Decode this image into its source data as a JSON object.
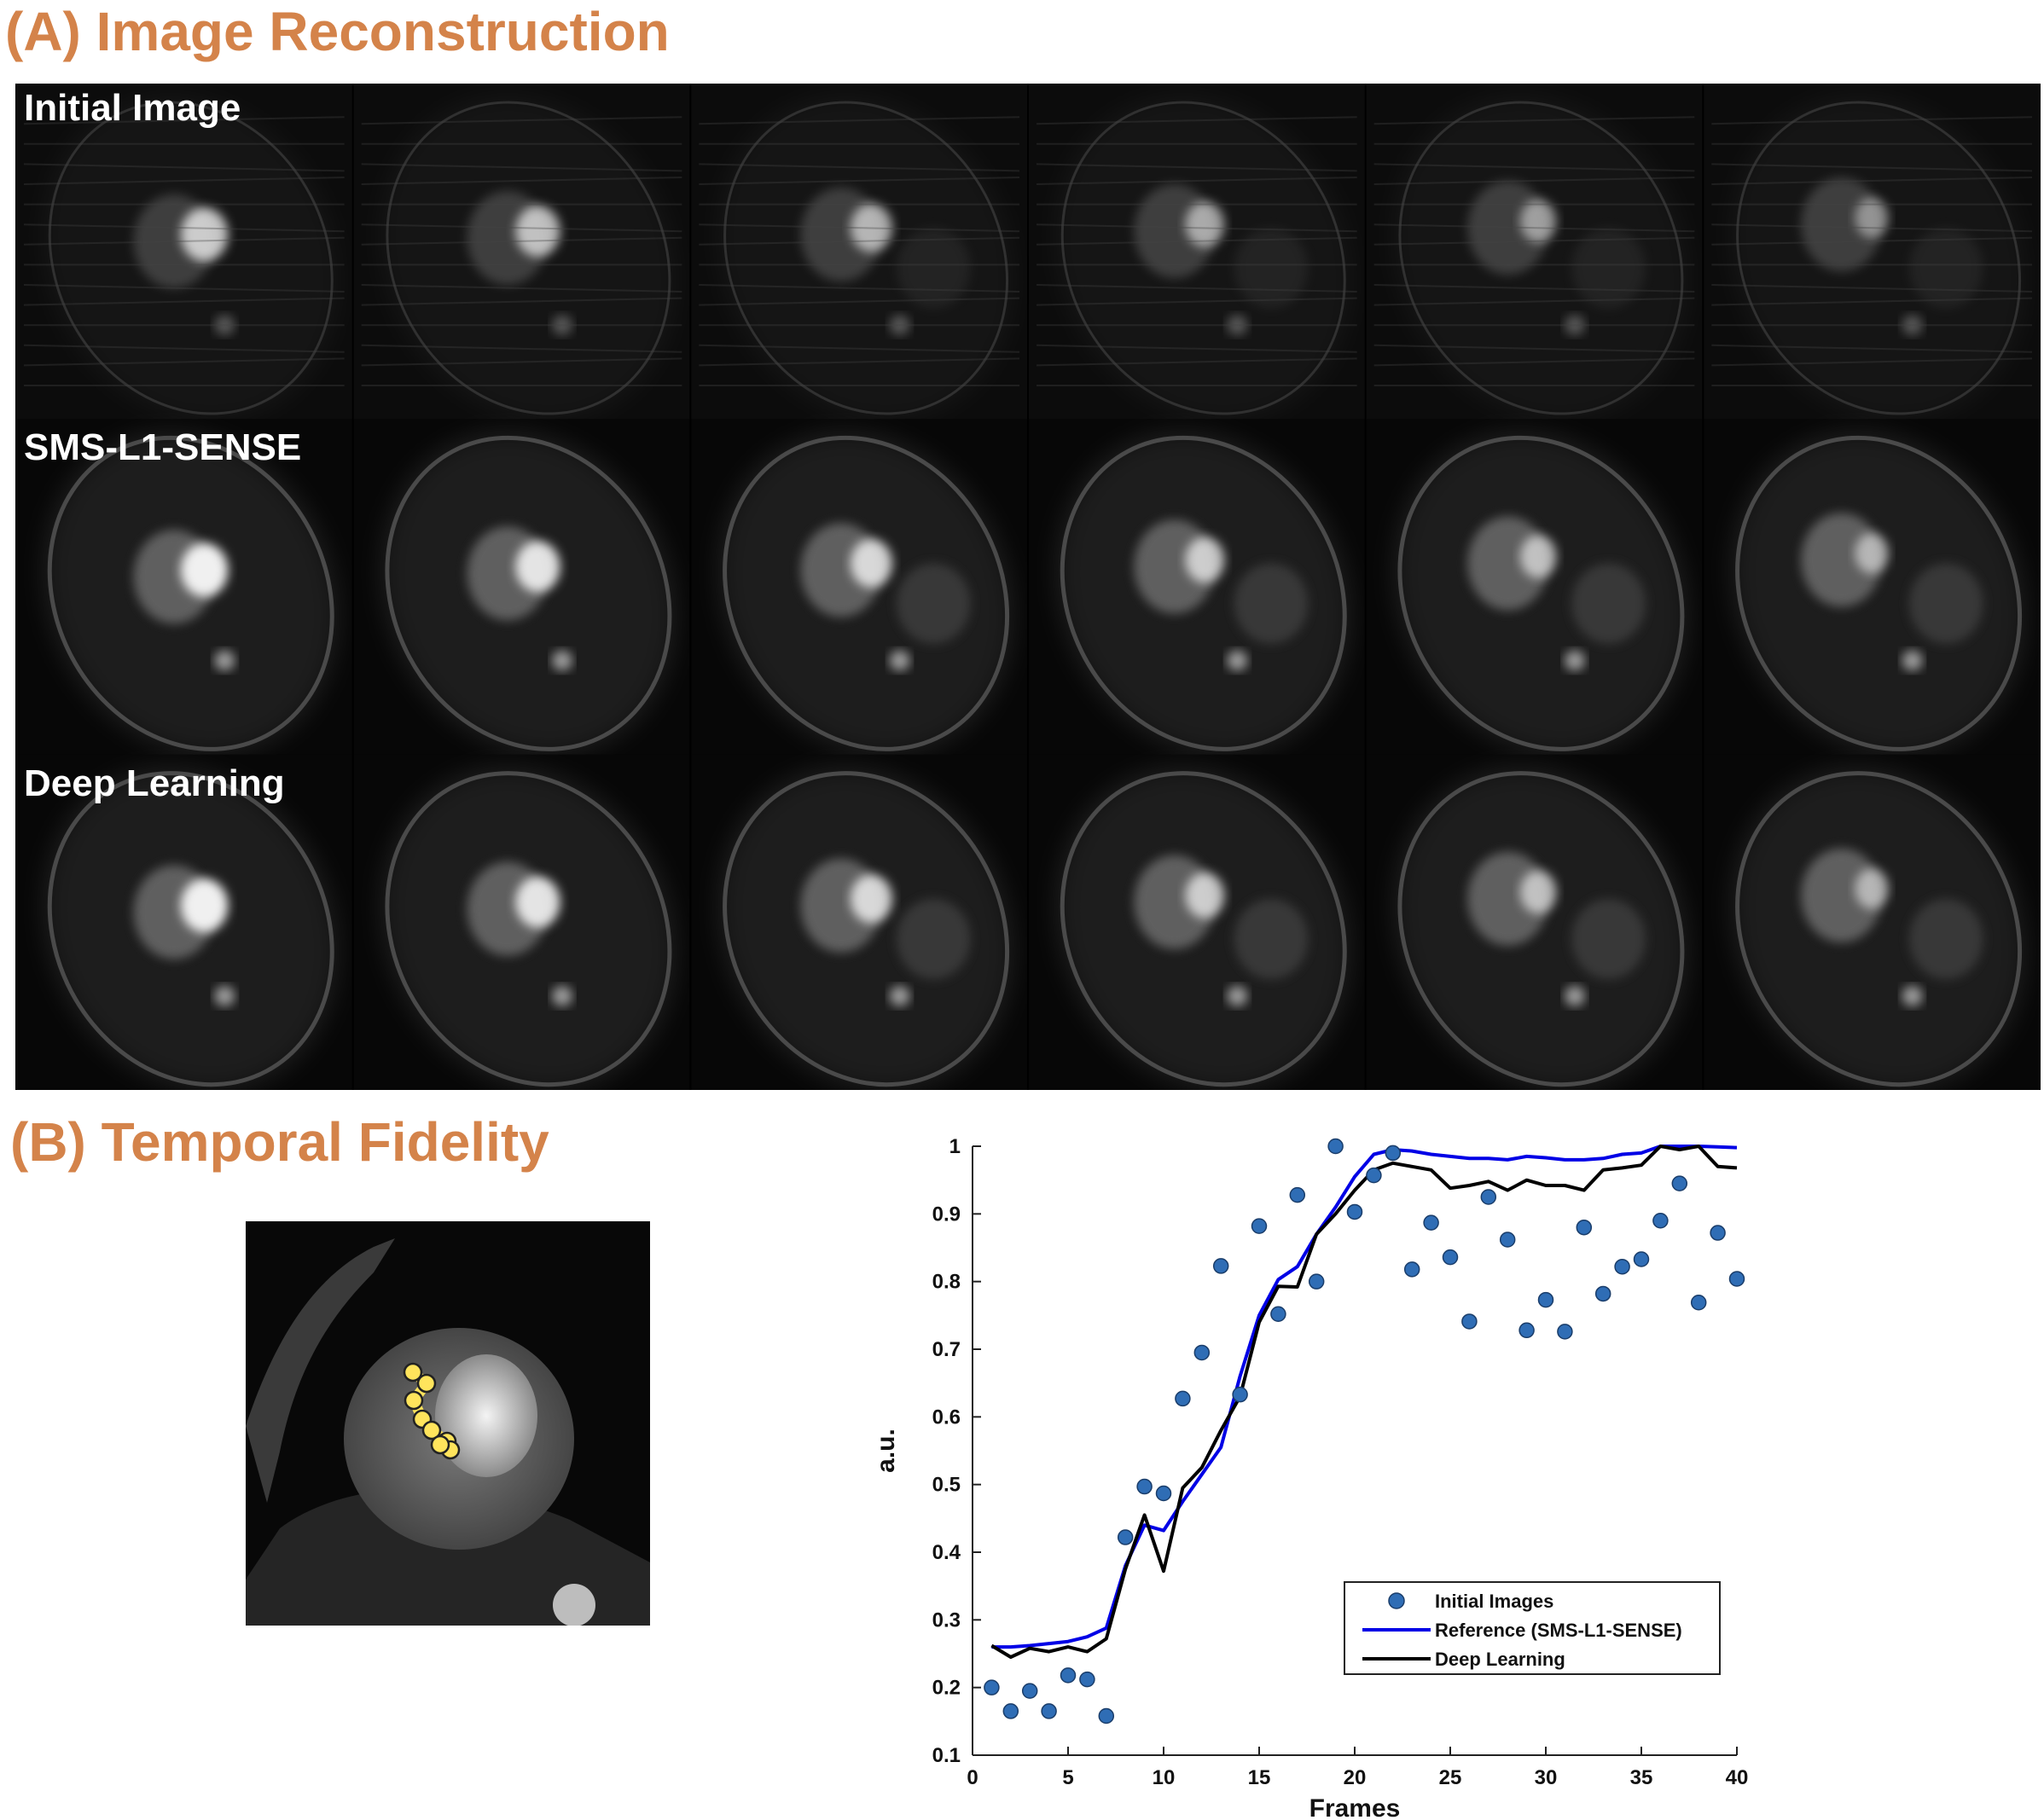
{
  "panel_a": {
    "title": "(A) Image Reconstruction",
    "rows": [
      {
        "label": "Initial Image",
        "quality": "noisy"
      },
      {
        "label": "SMS-L1-SENSE",
        "quality": "clean"
      },
      {
        "label": "Deep Learning",
        "quality": "clean"
      }
    ],
    "frames_per_row": 6
  },
  "panel_b": {
    "title": "(B) Temporal Fidelity"
  },
  "colors": {
    "title": "#D4834A",
    "initial": "#2F6DB5",
    "reference": "#0000E6",
    "deep": "#000000",
    "roi": "#FFE45C"
  },
  "chart_data": {
    "type": "line",
    "xlabel": "Frames",
    "ylabel": "a.u.",
    "xlim": [
      0,
      40
    ],
    "ylim": [
      0.1,
      1
    ],
    "xticks": [
      0,
      5,
      10,
      15,
      20,
      25,
      30,
      35,
      40
    ],
    "yticks": [
      0.1,
      0.2,
      0.3,
      0.4,
      0.5,
      0.6,
      0.7,
      0.8,
      0.9,
      1
    ],
    "ytick_labels": [
      "0.1",
      "0.2",
      "0.3",
      "0.4",
      "0.5",
      "0.6",
      "0.7",
      "0.8",
      "0.9",
      "1"
    ],
    "grid": false,
    "legend_position": "bottom-right",
    "x": [
      1,
      2,
      3,
      4,
      5,
      6,
      7,
      8,
      9,
      10,
      11,
      12,
      13,
      14,
      15,
      16,
      17,
      18,
      19,
      20,
      21,
      22,
      23,
      24,
      25,
      26,
      27,
      28,
      29,
      30,
      31,
      32,
      33,
      34,
      35,
      36,
      37,
      38,
      39,
      40
    ],
    "series": [
      {
        "name": "Initial Images",
        "style": "markers",
        "values": [
          0.2,
          0.165,
          0.195,
          0.165,
          0.218,
          0.212,
          0.158,
          0.422,
          0.497,
          0.487,
          0.627,
          0.695,
          0.823,
          0.633,
          0.882,
          0.752,
          0.928,
          0.8,
          1.0,
          0.903,
          0.957,
          0.99,
          0.818,
          0.887,
          0.836,
          0.741,
          0.925,
          0.862,
          0.728,
          0.773,
          0.726,
          0.88,
          0.782,
          0.822,
          0.833,
          0.89,
          0.945,
          0.769,
          0.872,
          0.804
        ]
      },
      {
        "name": "Reference (SMS-L1-SENSE)",
        "style": "line",
        "values": [
          0.26,
          0.26,
          0.262,
          0.265,
          0.268,
          0.275,
          0.288,
          0.38,
          0.44,
          0.432,
          0.475,
          0.515,
          0.555,
          0.66,
          0.75,
          0.803,
          0.822,
          0.87,
          0.91,
          0.955,
          0.988,
          0.995,
          0.993,
          0.988,
          0.985,
          0.982,
          0.982,
          0.98,
          0.985,
          0.983,
          0.98,
          0.98,
          0.982,
          0.988,
          0.99,
          1.0,
          1.0,
          1.0,
          0.999,
          0.998
        ]
      },
      {
        "name": "Deep Learning",
        "style": "line",
        "values": [
          0.262,
          0.245,
          0.258,
          0.253,
          0.26,
          0.253,
          0.272,
          0.375,
          0.455,
          0.372,
          0.495,
          0.525,
          0.58,
          0.63,
          0.74,
          0.793,
          0.792,
          0.87,
          0.9,
          0.935,
          0.965,
          0.975,
          0.97,
          0.965,
          0.938,
          0.942,
          0.948,
          0.935,
          0.95,
          0.942,
          0.942,
          0.935,
          0.965,
          0.968,
          0.972,
          1.0,
          0.995,
          1.0,
          0.97,
          0.968
        ]
      }
    ]
  }
}
